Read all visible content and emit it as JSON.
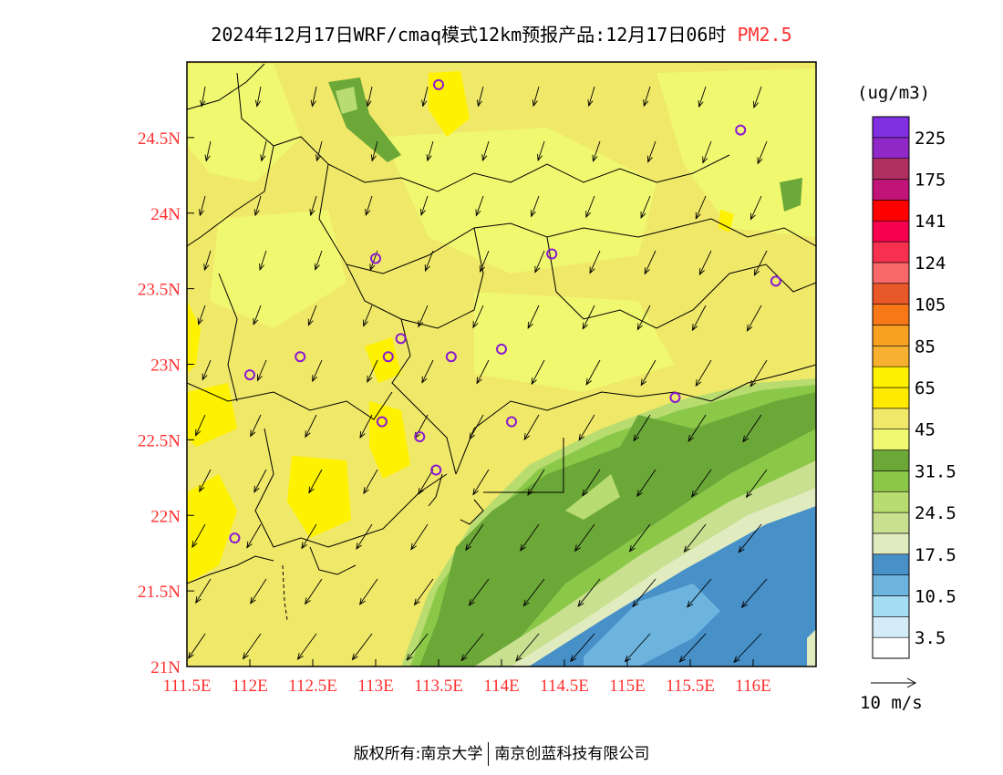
{
  "title": {
    "text": "2024年12月17日WRF/cmaq模式12km预报产品:12月17日06时",
    "variable": "PM2.5"
  },
  "axes": {
    "x_ticks": [
      "111.5E",
      "112E",
      "112.5E",
      "113E",
      "113.5E",
      "114E",
      "114.5E",
      "115E",
      "115.5E",
      "116E"
    ],
    "y_ticks": [
      "21N",
      "21.5N",
      "22N",
      "22.5N",
      "23N",
      "23.5N",
      "24N",
      "24.5N"
    ]
  },
  "colorbar": {
    "unit": "(ug/m3)",
    "colors": [
      "#ffffff",
      "#d4ecf8",
      "#a4dcf4",
      "#6cb4de",
      "#4890c8",
      "#e0ecc0",
      "#c8e090",
      "#b8dc70",
      "#8cc848",
      "#6ca838",
      "#f0f870",
      "#f0e868",
      "#ffea00",
      "#fff200",
      "#f8b030",
      "#f8a020",
      "#f87818",
      "#e85828",
      "#f86868",
      "#f83050",
      "#f80050",
      "#ff0000",
      "#c01478",
      "#b03060",
      "#9028c8",
      "#8030e0"
    ],
    "labels": [
      "3.5",
      "10.5",
      "17.5",
      "24.5",
      "31.5",
      "45",
      "65",
      "85",
      "105",
      "124",
      "141",
      "175",
      "225"
    ]
  },
  "wind_legend": {
    "label": "10 m/s"
  },
  "stations": [
    {
      "lon": 113.5,
      "lat": 24.85
    },
    {
      "lon": 115.9,
      "lat": 24.55
    },
    {
      "lon": 113.0,
      "lat": 23.7
    },
    {
      "lon": 114.4,
      "lat": 23.73
    },
    {
      "lon": 116.18,
      "lat": 23.55
    },
    {
      "lon": 112.4,
      "lat": 23.05
    },
    {
      "lon": 113.1,
      "lat": 23.05
    },
    {
      "lon": 113.2,
      "lat": 23.17
    },
    {
      "lon": 113.6,
      "lat": 23.05
    },
    {
      "lon": 114.0,
      "lat": 23.1
    },
    {
      "lon": 112.0,
      "lat": 22.93
    },
    {
      "lon": 115.38,
      "lat": 22.78
    },
    {
      "lon": 113.05,
      "lat": 22.62
    },
    {
      "lon": 113.35,
      "lat": 22.52
    },
    {
      "lon": 114.08,
      "lat": 22.62
    },
    {
      "lon": 113.48,
      "lat": 22.3
    },
    {
      "lon": 111.88,
      "lat": 21.85
    }
  ],
  "footer": {
    "left": "版权所有:南京大学",
    "right": "南京创蓝科技有限公司"
  }
}
